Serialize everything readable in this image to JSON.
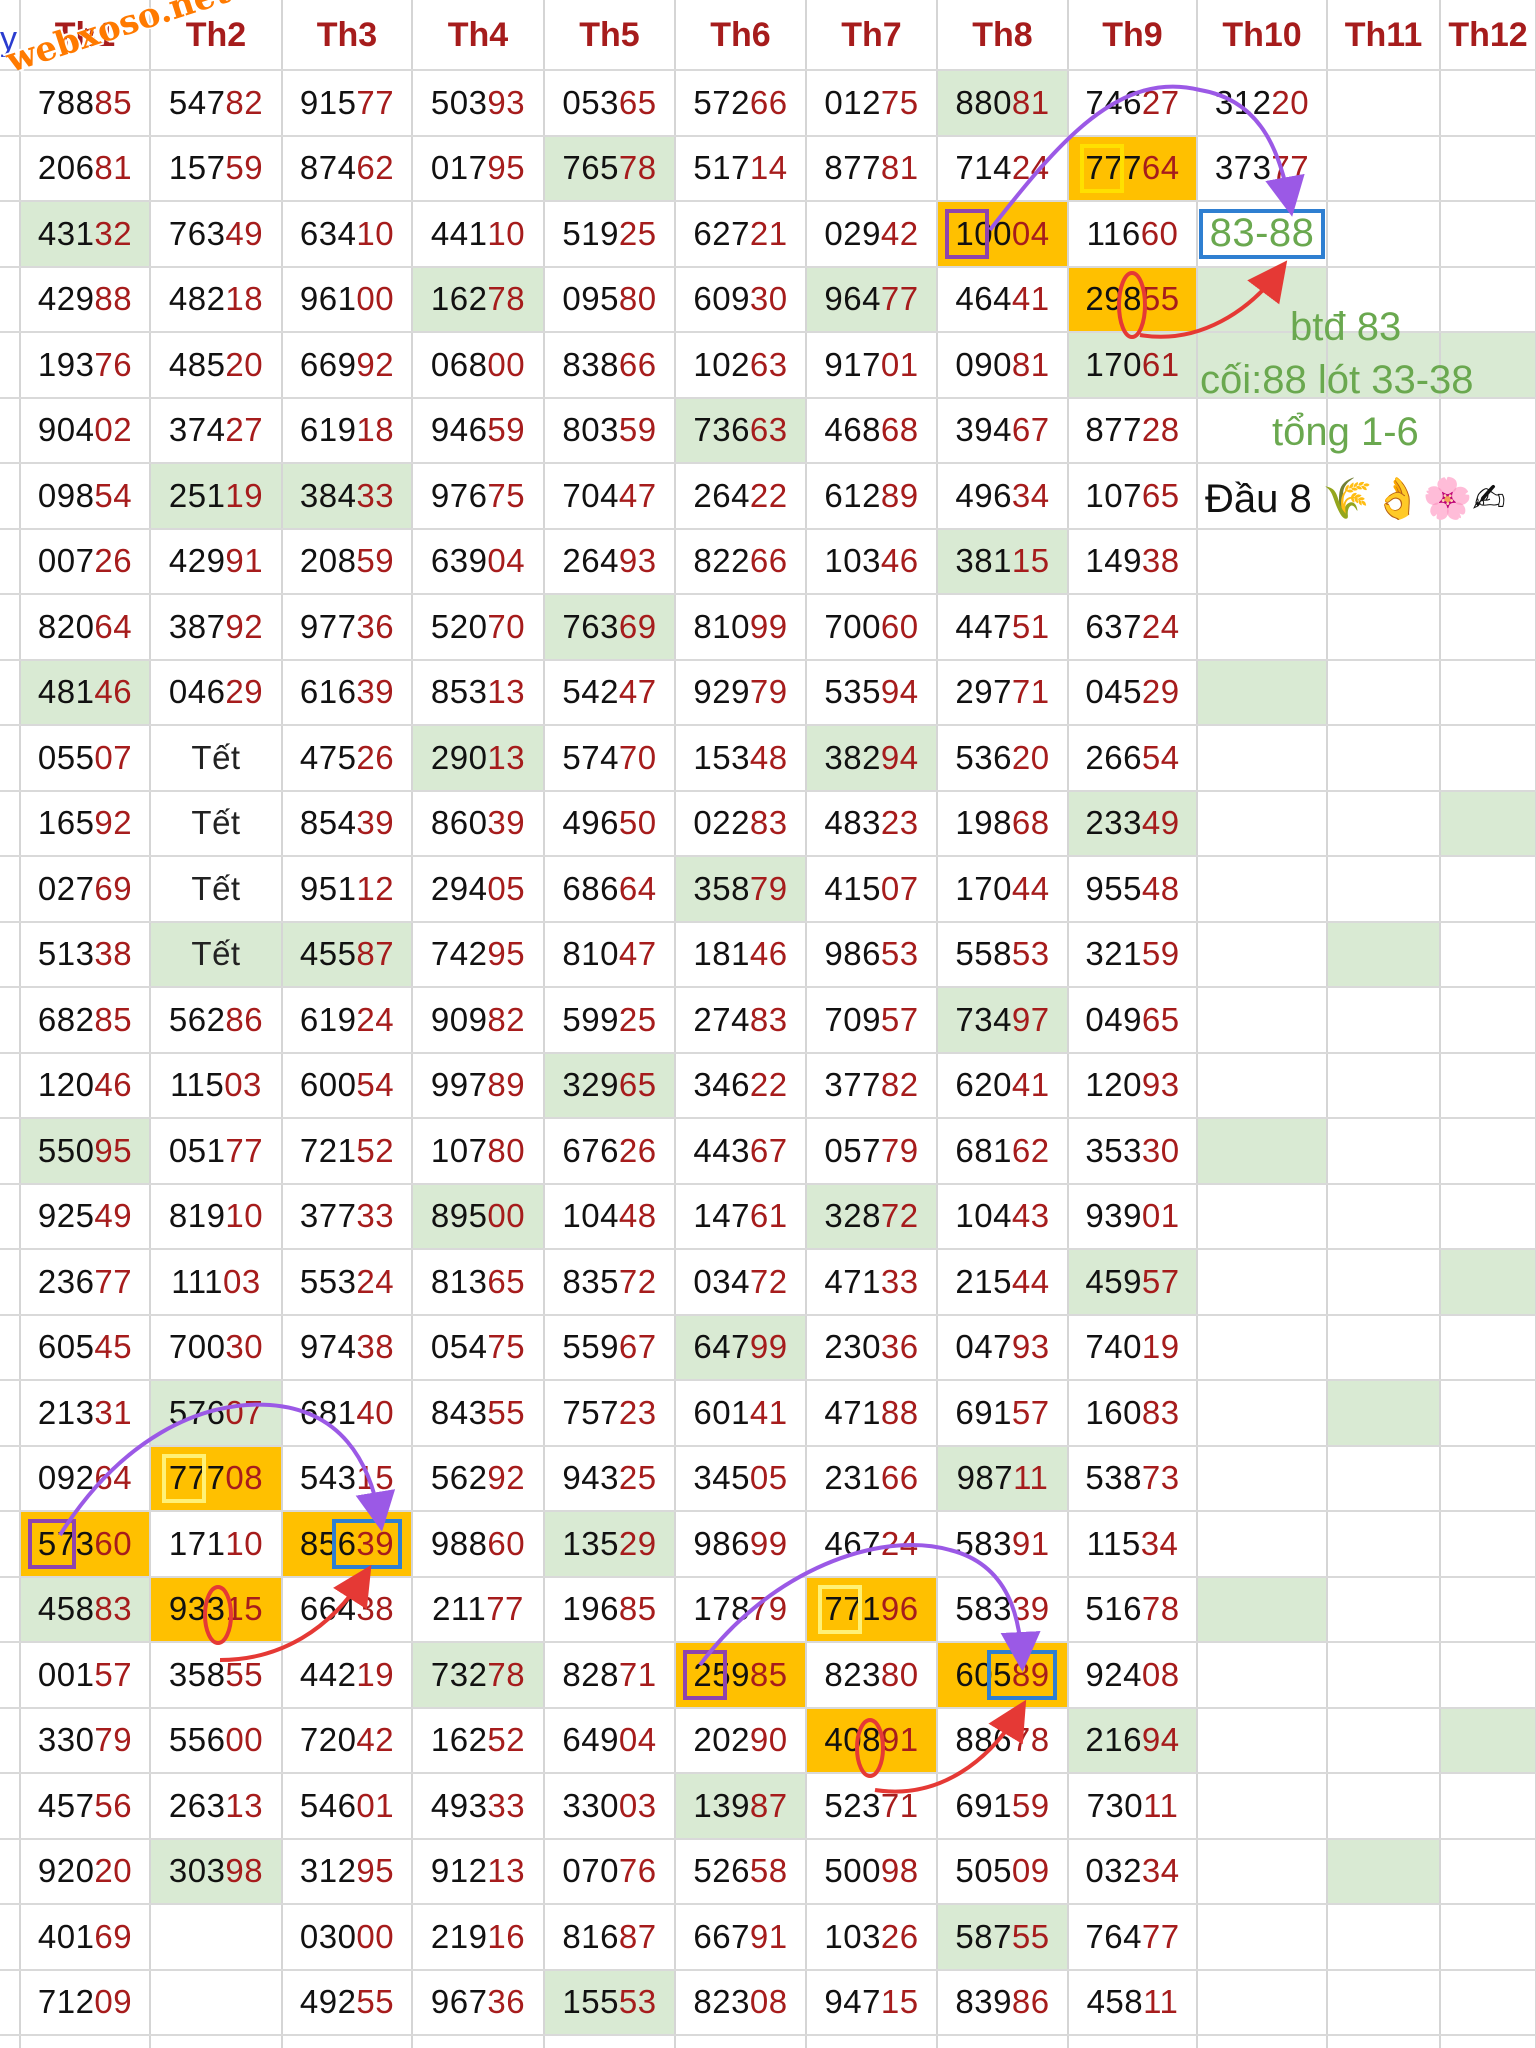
{
  "headers": [
    "Th1",
    "Th2",
    "Th3",
    "Th4",
    "Th5",
    "Th6",
    "Th7",
    "Th8",
    "Th9",
    "Th10",
    "Th11",
    "Th12"
  ],
  "rows": [
    [
      "78885",
      "54782",
      "91577",
      "50393",
      "05365",
      "57266",
      "01275",
      "88081",
      "74627",
      "31220"
    ],
    [
      "20681",
      "15759",
      "87462",
      "01795",
      "76578",
      "51714",
      "87781",
      "71424",
      "77764",
      "37377"
    ],
    [
      "43132",
      "76349",
      "63410",
      "44110",
      "51925",
      "62721",
      "02942",
      "10004",
      "11660",
      "83-88"
    ],
    [
      "42988",
      "48218",
      "96100",
      "16278",
      "09580",
      "60930",
      "96477",
      "46441",
      "29855",
      ""
    ],
    [
      "19376",
      "48520",
      "66992",
      "06800",
      "83866",
      "10263",
      "91701",
      "09081",
      "17061",
      ""
    ],
    [
      "90402",
      "37427",
      "61918",
      "94659",
      "80359",
      "73663",
      "46868",
      "39467",
      "87728",
      ""
    ],
    [
      "09854",
      "25119",
      "38433",
      "97675",
      "70447",
      "26422",
      "61289",
      "49634",
      "10765",
      ""
    ],
    [
      "00726",
      "42991",
      "20859",
      "63904",
      "26493",
      "82266",
      "10346",
      "38115",
      "14938",
      ""
    ],
    [
      "82064",
      "38792",
      "97736",
      "52070",
      "76369",
      "81099",
      "70060",
      "44751",
      "63724",
      ""
    ],
    [
      "48146",
      "04629",
      "61639",
      "85313",
      "54247",
      "92979",
      "53594",
      "29771",
      "04529",
      ""
    ],
    [
      "05507",
      "Tết",
      "47526",
      "29013",
      "57470",
      "15348",
      "38294",
      "53620",
      "26654",
      ""
    ],
    [
      "16592",
      "Tết",
      "85439",
      "86039",
      "49650",
      "02283",
      "48323",
      "19868",
      "23349",
      ""
    ],
    [
      "02769",
      "Tết",
      "95112",
      "29405",
      "68664",
      "35879",
      "41507",
      "17044",
      "95548",
      ""
    ],
    [
      "51338",
      "Tết",
      "45587",
      "74295",
      "81047",
      "18146",
      "98653",
      "55853",
      "32159",
      ""
    ],
    [
      "68285",
      "56286",
      "61924",
      "90982",
      "59925",
      "27483",
      "70957",
      "73497",
      "04965",
      ""
    ],
    [
      "12046",
      "11503",
      "60054",
      "99789",
      "32965",
      "34622",
      "37782",
      "62041",
      "12093",
      ""
    ],
    [
      "55095",
      "05177",
      "72152",
      "10780",
      "67626",
      "44367",
      "05779",
      "68162",
      "35330",
      ""
    ],
    [
      "92549",
      "81910",
      "37733",
      "89500",
      "10448",
      "14761",
      "32872",
      "10443",
      "93901",
      ""
    ],
    [
      "23677",
      "11103",
      "55324",
      "81365",
      "83572",
      "03472",
      "47133",
      "21544",
      "45957",
      ""
    ],
    [
      "60545",
      "70030",
      "97438",
      "05475",
      "55967",
      "64799",
      "23036",
      "04793",
      "74019",
      ""
    ],
    [
      "21331",
      "57607",
      "68140",
      "84355",
      "75723",
      "60141",
      "47188",
      "69157",
      "16083",
      ""
    ],
    [
      "09264",
      "77708",
      "54315",
      "56292",
      "94325",
      "34505",
      "23166",
      "98711",
      "53873",
      ""
    ],
    [
      "57360",
      "17110",
      "85639",
      "98860",
      "13529",
      "98699",
      "46724",
      "58391",
      "11534",
      ""
    ],
    [
      "45883",
      "93315",
      "66438",
      "21177",
      "19685",
      "17879",
      "77196",
      "58339",
      "51678",
      ""
    ],
    [
      "00157",
      "35855",
      "44219",
      "73278",
      "82871",
      "25985",
      "82380",
      "60589",
      "92408",
      ""
    ],
    [
      "33079",
      "55600",
      "72042",
      "16252",
      "64904",
      "20290",
      "40891",
      "88678",
      "21694",
      ""
    ],
    [
      "45756",
      "26313",
      "54601",
      "49333",
      "33003",
      "13987",
      "52371",
      "69159",
      "73011",
      ""
    ],
    [
      "92020",
      "30398",
      "31295",
      "91213",
      "07076",
      "52658",
      "50098",
      "50509",
      "03234",
      ""
    ],
    [
      "40169",
      "",
      "03000",
      "21916",
      "81687",
      "66791",
      "10326",
      "58755",
      "76477",
      ""
    ],
    [
      "71209",
      "",
      "49255",
      "96736",
      "15553",
      "82308",
      "94715",
      "83986",
      "45811",
      ""
    ]
  ],
  "green_cells": [
    [
      0,
      7
    ],
    [
      1,
      4
    ],
    [
      2,
      0
    ],
    [
      3,
      3
    ],
    [
      3,
      6
    ],
    [
      4,
      8
    ],
    [
      5,
      5
    ],
    [
      6,
      1
    ],
    [
      6,
      2
    ],
    [
      7,
      7
    ],
    [
      8,
      4
    ],
    [
      9,
      0
    ],
    [
      9,
      9
    ],
    [
      10,
      3
    ],
    [
      10,
      6
    ],
    [
      11,
      8
    ],
    [
      11,
      11
    ],
    [
      12,
      5
    ],
    [
      13,
      1
    ],
    [
      13,
      2
    ],
    [
      13,
      10
    ],
    [
      14,
      7
    ],
    [
      15,
      4
    ],
    [
      16,
      0
    ],
    [
      16,
      9
    ],
    [
      17,
      3
    ],
    [
      17,
      6
    ],
    [
      18,
      8
    ],
    [
      18,
      11
    ],
    [
      19,
      5
    ],
    [
      20,
      1
    ],
    [
      20,
      10
    ],
    [
      21,
      7
    ],
    [
      22,
      4
    ],
    [
      23,
      0
    ],
    [
      23,
      9
    ],
    [
      24,
      3
    ],
    [
      25,
      8
    ],
    [
      25,
      11
    ],
    [
      26,
      5
    ],
    [
      27,
      1
    ],
    [
      27,
      10
    ],
    [
      28,
      7
    ],
    [
      29,
      4
    ],
    [
      3,
      9
    ],
    [
      4,
      9
    ],
    [
      4,
      10
    ],
    [
      4,
      11
    ]
  ],
  "orange_cells": [
    [
      2,
      7
    ],
    [
      1,
      8
    ],
    [
      3,
      8
    ],
    [
      21,
      1
    ],
    [
      22,
      0
    ],
    [
      22,
      2
    ],
    [
      23,
      1
    ],
    [
      23,
      6
    ],
    [
      24,
      5
    ],
    [
      24,
      7
    ],
    [
      25,
      6
    ]
  ],
  "annotations": {
    "watermark": "webxoso.net",
    "prediction_cell": "83-88",
    "note_line1": "btđ 83",
    "note_line2": "cối:88 lót 33-38",
    "note_line3": "tổng 1-6",
    "note_line4": "Đầu 8 🌾👌🌸✍",
    "row_marker": "y"
  },
  "colors": {
    "accent_red": "#a61c1c",
    "green_bg": "#d9ead3",
    "orange_bg": "#ffc000",
    "arrow_purple": "#9b59e6",
    "arrow_red": "#e53935",
    "box_blue": "#2f7fd1"
  }
}
